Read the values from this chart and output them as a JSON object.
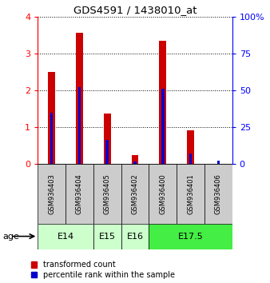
{
  "title": "GDS4591 / 1438010_at",
  "samples": [
    "GSM936403",
    "GSM936404",
    "GSM936405",
    "GSM936402",
    "GSM936400",
    "GSM936401",
    "GSM936406"
  ],
  "red_values": [
    2.5,
    3.57,
    1.38,
    0.25,
    3.35,
    0.92,
    0.0
  ],
  "blue_values_scaled": [
    1.4,
    2.1,
    0.65,
    0.08,
    2.05,
    0.3,
    0.1
  ],
  "age_groups": [
    {
      "label": "E14",
      "start": 0,
      "end": 2,
      "color": "#ccffcc"
    },
    {
      "label": "E15",
      "start": 2,
      "end": 3,
      "color": "#ccffcc"
    },
    {
      "label": "E16",
      "start": 3,
      "end": 4,
      "color": "#ccffcc"
    },
    {
      "label": "E17.5",
      "start": 4,
      "end": 7,
      "color": "#44ee44"
    }
  ],
  "left_ylim": [
    0,
    4
  ],
  "right_ylim": [
    0,
    100
  ],
  "left_yticks": [
    0,
    1,
    2,
    3,
    4
  ],
  "right_yticks": [
    0,
    25,
    50,
    75,
    100
  ],
  "left_yticklabels": [
    "0",
    "1",
    "2",
    "3",
    "4"
  ],
  "right_yticklabels": [
    "0",
    "25",
    "50",
    "75",
    "100%"
  ],
  "red_color": "#cc0000",
  "blue_color": "#0000cc",
  "sample_box_color": "#cccccc",
  "legend_red": "transformed count",
  "legend_blue": "percentile rank within the sample",
  "age_arrow_label": "age"
}
